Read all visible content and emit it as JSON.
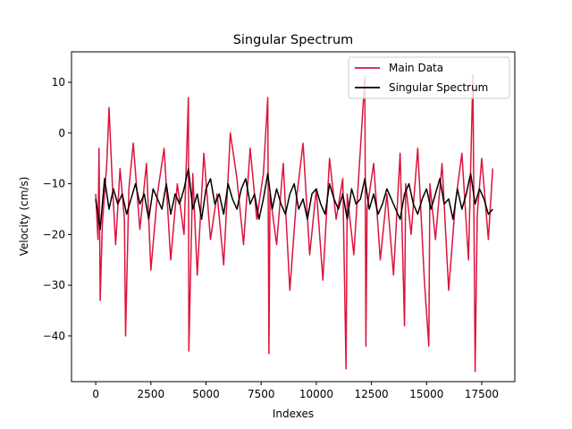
{
  "chart_data": {
    "type": "line",
    "title": "Singular Spectrum",
    "xlabel": "Indexes",
    "ylabel": "Velocity (cm/s)",
    "xlim": [
      -1100,
      19000
    ],
    "ylim": [
      -49,
      16
    ],
    "xticks": [
      0,
      2500,
      5000,
      7500,
      10000,
      12500,
      15000,
      17500
    ],
    "xtick_labels": [
      "0",
      "2500",
      "5000",
      "7500",
      "10000",
      "12500",
      "15000",
      "17500"
    ],
    "yticks": [
      10,
      0,
      -10,
      -20,
      -30,
      -40
    ],
    "ytick_labels": [
      "10",
      "0",
      "−10",
      "−20",
      "−30",
      "−40"
    ],
    "grid": false,
    "legend_position": "top-right",
    "series": [
      {
        "name": "Main Data",
        "color": "#dc143c",
        "x": [
          0,
          100,
          150,
          200,
          300,
          500,
          600,
          750,
          900,
          1100,
          1300,
          1350,
          1500,
          1700,
          2000,
          2300,
          2500,
          2800,
          3100,
          3400,
          3700,
          4000,
          4200,
          4220,
          4400,
          4600,
          4900,
          5200,
          5500,
          5800,
          6100,
          6400,
          6700,
          7000,
          7300,
          7600,
          7800,
          7850,
          7900,
          8200,
          8500,
          8800,
          9100,
          9400,
          9700,
          10000,
          10300,
          10600,
          10900,
          11200,
          11350,
          11400,
          11700,
          12000,
          12200,
          12250,
          12300,
          12600,
          12900,
          13200,
          13500,
          13800,
          14000,
          14050,
          14300,
          14600,
          14900,
          15100,
          15150,
          15400,
          15700,
          16000,
          16300,
          16600,
          16900,
          17100,
          17200,
          17300,
          17500,
          17800,
          18000
        ],
        "y": [
          -12,
          -21,
          -3,
          -33,
          -18,
          -6,
          5,
          -10,
          -22,
          -7,
          -17,
          -40,
          -11,
          -2,
          -19,
          -6,
          -27,
          -12,
          -3,
          -25,
          -10,
          -20,
          7,
          -43,
          -8,
          -28,
          -4,
          -21,
          -12,
          -26,
          0,
          -9,
          -22,
          -3,
          -17,
          -8,
          7,
          -43.5,
          -12,
          -22,
          -6,
          -31,
          -13,
          -2,
          -24,
          -11,
          -29,
          -5,
          -17,
          -9,
          -46.5,
          -12,
          -24,
          -3,
          11,
          -42,
          -15,
          -6,
          -25,
          -12,
          -28,
          -4,
          -38,
          -10,
          -20,
          -3,
          -29,
          -42,
          -10,
          -21,
          -6,
          -31,
          -14,
          -4,
          -25,
          11.5,
          -47,
          -16,
          -5,
          -21,
          -7
        ]
      },
      {
        "name": "Singular Spectrum",
        "color": "#000000",
        "x": [
          0,
          200,
          400,
          600,
          800,
          1000,
          1200,
          1400,
          1600,
          1800,
          2000,
          2200,
          2400,
          2600,
          2800,
          3000,
          3200,
          3400,
          3600,
          3800,
          4000,
          4200,
          4400,
          4600,
          4800,
          5000,
          5200,
          5400,
          5600,
          5800,
          6000,
          6200,
          6400,
          6600,
          6800,
          7000,
          7200,
          7400,
          7600,
          7800,
          8000,
          8200,
          8400,
          8600,
          8800,
          9000,
          9200,
          9400,
          9600,
          9800,
          10000,
          10200,
          10400,
          10600,
          10800,
          11000,
          11200,
          11400,
          11600,
          11800,
          12000,
          12200,
          12400,
          12600,
          12800,
          13000,
          13200,
          13400,
          13600,
          13800,
          14000,
          14200,
          14400,
          14600,
          14800,
          15000,
          15200,
          15400,
          15600,
          15800,
          16000,
          16200,
          16400,
          16600,
          16800,
          17000,
          17200,
          17400,
          17600,
          17800,
          18000
        ],
        "y": [
          -13,
          -19,
          -9,
          -15,
          -11,
          -14,
          -12,
          -16,
          -13,
          -10,
          -14,
          -12,
          -17,
          -11,
          -13,
          -15,
          -10,
          -16,
          -12,
          -14,
          -11,
          -7,
          -15,
          -12,
          -17,
          -11,
          -9,
          -14,
          -12,
          -16,
          -10,
          -13,
          -15,
          -11,
          -9,
          -14,
          -12,
          -17,
          -13,
          -8,
          -15,
          -11,
          -14,
          -16,
          -12,
          -10,
          -15,
          -13,
          -17,
          -12,
          -11,
          -14,
          -16,
          -10,
          -13,
          -15,
          -12,
          -17,
          -11,
          -14,
          -13,
          -9,
          -15,
          -12,
          -16,
          -14,
          -11,
          -13,
          -15,
          -17,
          -12,
          -10,
          -14,
          -16,
          -13,
          -11,
          -15,
          -12,
          -9,
          -14,
          -13,
          -17,
          -11,
          -15,
          -12,
          -8,
          -14,
          -11,
          -13,
          -16,
          -15
        ]
      }
    ]
  }
}
